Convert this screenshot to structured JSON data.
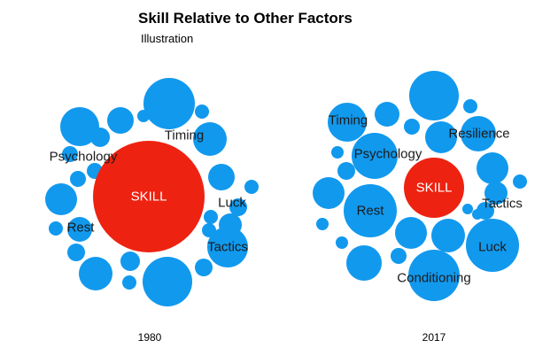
{
  "title": "Skill Relative to Other Factors",
  "subtitle": "Illustration",
  "colors": {
    "skill": "#ee2211",
    "factor": "#1199ee"
  },
  "chart_data": [
    {
      "type": "bubble",
      "year": "1980",
      "labeled_bubbles": [
        {
          "label": "SKILL",
          "kind": "skill"
        },
        {
          "label": "Timing",
          "kind": "factor"
        },
        {
          "label": "Psychology",
          "kind": "factor"
        },
        {
          "label": "Luck",
          "kind": "factor"
        },
        {
          "label": "Rest",
          "kind": "factor"
        },
        {
          "label": "Tactics",
          "kind": "factor"
        }
      ],
      "unlabeled_bubble_count": 21
    },
    {
      "type": "bubble",
      "year": "2017",
      "labeled_bubbles": [
        {
          "label": "SKILL",
          "kind": "skill"
        },
        {
          "label": "Timing",
          "kind": "factor"
        },
        {
          "label": "Resilience",
          "kind": "factor"
        },
        {
          "label": "Psychology",
          "kind": "factor"
        },
        {
          "label": "Tactics",
          "kind": "factor"
        },
        {
          "label": "Rest",
          "kind": "factor"
        },
        {
          "label": "Luck",
          "kind": "factor"
        },
        {
          "label": "Conditioning",
          "kind": "factor"
        }
      ],
      "unlabeled_bubble_count": 19
    }
  ]
}
